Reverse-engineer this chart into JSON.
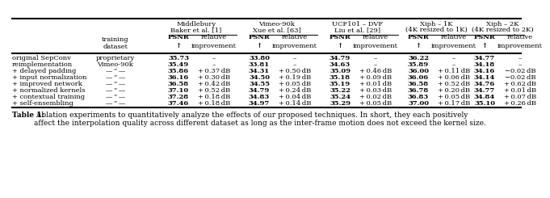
{
  "col_groups": [
    {
      "label_line1": "Middlebury",
      "label_line2": "Baker ",
      "label_et": "et al.",
      "label_ref": " [1]"
    },
    {
      "label_line1": "Vimeo-90k",
      "label_line2": "Xue ",
      "label_et": "et al.",
      "label_ref": " [63]"
    },
    {
      "label_line1": "UCF101 – DVF",
      "label_line2": "Liu ",
      "label_et": "et al.",
      "label_ref": " [29]"
    },
    {
      "label_line1": "Xiph – 1K",
      "label_line2": "(4K resized to 1K)",
      "label_et": "",
      "label_ref": ""
    },
    {
      "label_line1": "Xiph – 2K",
      "label_line2": "(4K resized to 2K)",
      "label_et": "",
      "label_ref": ""
    }
  ],
  "rows": [
    {
      "label": "original SepConv",
      "training": "proprietary",
      "data": [
        "35.73",
        "–",
        "33.80",
        "–",
        "34.79",
        "–",
        "36.22",
        "–",
        "34.77",
        "–"
      ],
      "underline": []
    },
    {
      "label": "reimplementation",
      "training": "Vimeo-90k",
      "data": [
        "35.49",
        "–",
        "33.81",
        "–",
        "34.63",
        "–",
        "35.89",
        "–",
        "34.18",
        "–"
      ],
      "underline": []
    },
    {
      "label": "+ delayed padding",
      "training": "— ” —",
      "data": [
        "35.86",
        "+ 0.37 dB",
        "34.31",
        "+ 0.50 dB",
        "35.09",
        "+ 0.46 dB",
        "36.00",
        "+ 0.11 dB",
        "34.16",
        "−0.02 dB"
      ],
      "underline": []
    },
    {
      "label": "+ input normalization",
      "training": "— ” —",
      "data": [
        "36.16",
        "+ 0.30 dB",
        "34.50",
        "+ 0.19 dB",
        "35.18",
        "+ 0.09 dB",
        "36.06",
        "+ 0.06 dB",
        "34.14",
        "−0.02 dB"
      ],
      "underline": []
    },
    {
      "label": "+ improved network",
      "training": "— ” —",
      "data": [
        "36.58",
        "+ 0.42 dB",
        "34.55",
        "+ 0.05 dB",
        "35.19",
        "+ 0.01 dB",
        "36.58",
        "+ 0.52 dB",
        "34.76",
        "+ 0.62 dB"
      ],
      "underline": []
    },
    {
      "label": "+ normalized kernels",
      "training": "— ” —",
      "data": [
        "37.10",
        "+ 0.52 dB",
        "34.79",
        "+ 0.24 dB",
        "35.22",
        "+ 0.03 dB",
        "36.78",
        "+ 0.20 dB",
        "34.77",
        "+ 0.01 dB"
      ],
      "underline": []
    },
    {
      "label": "+ contextual training",
      "training": "— ” —",
      "data": [
        "37.28",
        "+ 0.18 dB",
        "34.83",
        "+ 0.04 dB",
        "35.24",
        "+ 0.02 dB",
        "36.83",
        "+ 0.05 dB",
        "34.84",
        "+ 0.07 dB"
      ],
      "underline": []
    },
    {
      "label": "+ self-ensembling",
      "training": "— ” —",
      "data": [
        "37.46",
        "+ 0.18 dB",
        "34.97",
        "+ 0.14 dB",
        "35.29",
        "+ 0.05 dB",
        "37.00",
        "+ 0.17 dB",
        "35.10",
        "+ 0.26 dB"
      ],
      "underline": [
        0,
        2,
        4,
        6,
        8
      ]
    }
  ],
  "caption_bold": "Table 1:",
  "caption_rest": " Ablation experiments to quantitatively analyze the effects of our proposed techniques. In short, they each positively\naffect the interpolation quality across different dataset as long as the inter-frame motion does not exceed the kernel size.",
  "fontsize": 6.0,
  "caption_fontsize": 6.5
}
